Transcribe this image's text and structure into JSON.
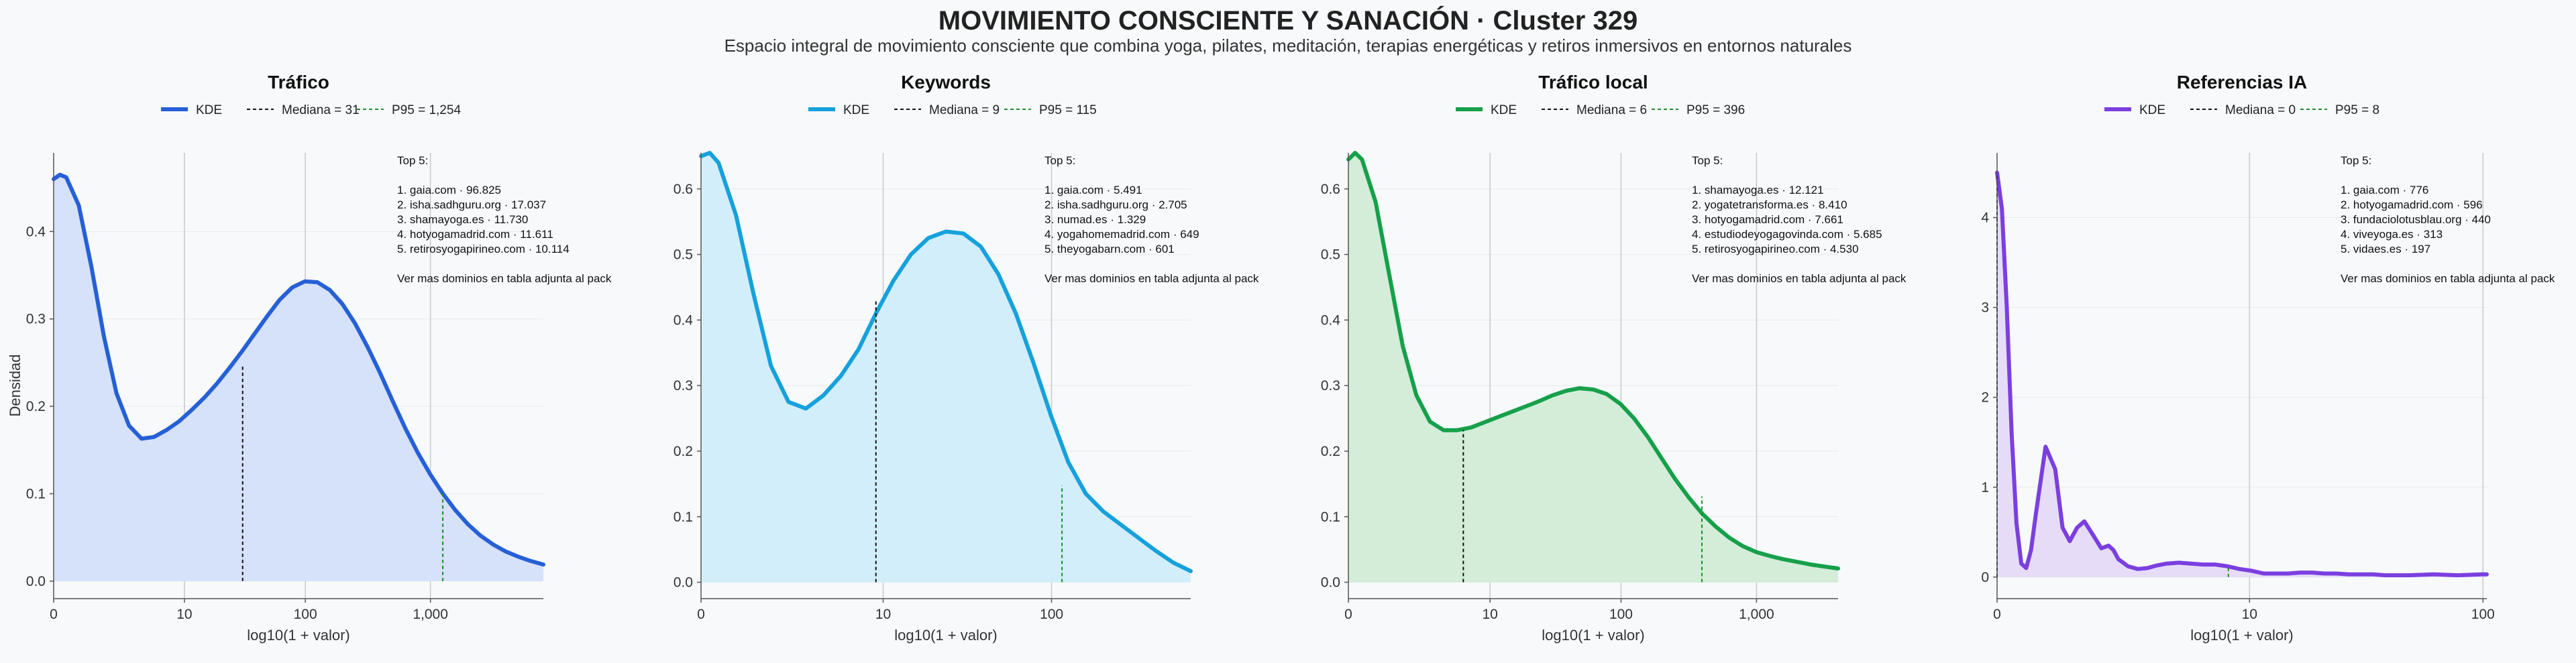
{
  "title": "MOVIMIENTO CONSCIENTE Y SANACIÓN · Cluster 329",
  "subtitle": "Espacio integral de movimiento consciente que combina yoga, pilates, meditación, terapias energéticas y retiros inmersivos en entornos naturales",
  "ylabel": "Densidad",
  "legend_labels": {
    "kde": "KDE"
  },
  "chart_data": [
    {
      "type": "area",
      "title": "Tráfico",
      "color": "#2660d6",
      "fill": "#d6e1fa",
      "xlabel": "log10(1 + valor)",
      "xlim": [
        0,
        3.9
      ],
      "ylim": [
        -0.02,
        0.49
      ],
      "xticks": [
        {
          "v": 0,
          "label": "0"
        },
        {
          "v": 1.0414,
          "label": "10"
        },
        {
          "v": 2.0043,
          "label": "100"
        },
        {
          "v": 3.0004,
          "label": "1,000"
        }
      ],
      "yticks": [
        {
          "v": 0,
          "label": "0.0"
        },
        {
          "v": 0.1,
          "label": "0.1"
        },
        {
          "v": 0.2,
          "label": "0.2"
        },
        {
          "v": 0.3,
          "label": "0.3"
        },
        {
          "v": 0.4,
          "label": "0.4"
        }
      ],
      "x": [
        0,
        0.05,
        0.1,
        0.2,
        0.3,
        0.4,
        0.5,
        0.6,
        0.7,
        0.8,
        0.9,
        1.0,
        1.1,
        1.2,
        1.3,
        1.4,
        1.5,
        1.6,
        1.7,
        1.8,
        1.9,
        2.0,
        2.1,
        2.2,
        2.3,
        2.4,
        2.5,
        2.6,
        2.7,
        2.8,
        2.9,
        3.0,
        3.1,
        3.2,
        3.3,
        3.4,
        3.5,
        3.6,
        3.7,
        3.8,
        3.9
      ],
      "y": [
        0.46,
        0.465,
        0.462,
        0.43,
        0.36,
        0.28,
        0.215,
        0.178,
        0.163,
        0.165,
        0.173,
        0.183,
        0.196,
        0.21,
        0.226,
        0.244,
        0.263,
        0.283,
        0.303,
        0.322,
        0.336,
        0.343,
        0.342,
        0.333,
        0.317,
        0.295,
        0.268,
        0.238,
        0.206,
        0.175,
        0.147,
        0.122,
        0.1,
        0.081,
        0.065,
        0.052,
        0.042,
        0.034,
        0.028,
        0.023,
        0.019
      ],
      "median": {
        "label": "Mediana = 31",
        "x": 1.505,
        "y": 0.246
      },
      "p95": {
        "label": "P95 = 1,254",
        "x": 3.099,
        "y": 0.1
      },
      "annotation": [
        "Top 5:",
        "",
        "1. gaia.com · 96.825",
        "2. isha.sadhguru.org · 17.037",
        "3. shamayoga.es · 11.730",
        "4. hotyogamadrid.com · 11.611",
        "5. retirosyogapirineo.com · 10.114",
        "",
        "Ver mas dominios en tabla adjunta al pack"
      ]
    },
    {
      "type": "area",
      "title": "Keywords",
      "color": "#16a1dc",
      "fill": "#d3eefb",
      "xlabel": "log10(1 + valor)",
      "xlim": [
        0,
        2.8
      ],
      "ylim": [
        -0.025,
        0.655
      ],
      "xticks": [
        {
          "v": 0,
          "label": "0"
        },
        {
          "v": 1.0414,
          "label": "10"
        },
        {
          "v": 2.0043,
          "label": "100"
        }
      ],
      "yticks": [
        {
          "v": 0,
          "label": "0.0"
        },
        {
          "v": 0.1,
          "label": "0.1"
        },
        {
          "v": 0.2,
          "label": "0.2"
        },
        {
          "v": 0.3,
          "label": "0.3"
        },
        {
          "v": 0.4,
          "label": "0.4"
        },
        {
          "v": 0.5,
          "label": "0.5"
        },
        {
          "v": 0.6,
          "label": "0.6"
        }
      ],
      "x": [
        0,
        0.05,
        0.1,
        0.2,
        0.3,
        0.4,
        0.5,
        0.6,
        0.7,
        0.8,
        0.9,
        1.0,
        1.1,
        1.2,
        1.3,
        1.4,
        1.5,
        1.6,
        1.7,
        1.8,
        1.9,
        2.0,
        2.1,
        2.2,
        2.3,
        2.4,
        2.5,
        2.6,
        2.7,
        2.8
      ],
      "y": [
        0.65,
        0.655,
        0.64,
        0.56,
        0.44,
        0.33,
        0.275,
        0.265,
        0.285,
        0.315,
        0.355,
        0.41,
        0.46,
        0.5,
        0.525,
        0.535,
        0.532,
        0.512,
        0.47,
        0.41,
        0.335,
        0.255,
        0.183,
        0.135,
        0.108,
        0.088,
        0.068,
        0.048,
        0.03,
        0.017
      ],
      "median": {
        "label": "Mediana = 9",
        "x": 1.0,
        "y": 0.432
      },
      "p95": {
        "label": "P95 = 115",
        "x": 2.064,
        "y": 0.148
      },
      "annotation": [
        "Top 5:",
        "",
        "1. gaia.com · 5.491",
        "2. isha.sadhguru.org · 2.705",
        "3. numad.es · 1.329",
        "4. yogahomemadrid.com · 649",
        "5. theyogabarn.com · 601",
        "",
        "Ver mas dominios en tabla adjunta al pack"
      ]
    },
    {
      "type": "area",
      "title": "Tráfico local",
      "color": "#16a04a",
      "fill": "#d3edd9",
      "xlabel": "log10(1 + valor)",
      "xlim": [
        0,
        3.6
      ],
      "ylim": [
        -0.025,
        0.655
      ],
      "xticks": [
        {
          "v": 0,
          "label": "0"
        },
        {
          "v": 1.0414,
          "label": "10"
        },
        {
          "v": 2.0043,
          "label": "100"
        },
        {
          "v": 3.0004,
          "label": "1,000"
        }
      ],
      "yticks": [
        {
          "v": 0,
          "label": "0.0"
        },
        {
          "v": 0.1,
          "label": "0.1"
        },
        {
          "v": 0.2,
          "label": "0.2"
        },
        {
          "v": 0.3,
          "label": "0.3"
        },
        {
          "v": 0.4,
          "label": "0.4"
        },
        {
          "v": 0.5,
          "label": "0.5"
        },
        {
          "v": 0.6,
          "label": "0.6"
        }
      ],
      "x": [
        0,
        0.05,
        0.1,
        0.2,
        0.3,
        0.4,
        0.5,
        0.6,
        0.7,
        0.8,
        0.9,
        1.0,
        1.1,
        1.2,
        1.3,
        1.4,
        1.5,
        1.6,
        1.7,
        1.8,
        1.9,
        2.0,
        2.1,
        2.2,
        2.3,
        2.4,
        2.5,
        2.6,
        2.7,
        2.8,
        2.9,
        3.0,
        3.1,
        3.2,
        3.3,
        3.4,
        3.5,
        3.6
      ],
      "y": [
        0.645,
        0.655,
        0.645,
        0.58,
        0.47,
        0.36,
        0.285,
        0.245,
        0.232,
        0.232,
        0.236,
        0.244,
        0.252,
        0.26,
        0.268,
        0.276,
        0.285,
        0.292,
        0.296,
        0.294,
        0.287,
        0.272,
        0.25,
        0.222,
        0.19,
        0.158,
        0.13,
        0.105,
        0.085,
        0.068,
        0.055,
        0.046,
        0.04,
        0.035,
        0.031,
        0.027,
        0.024,
        0.021
      ],
      "median": {
        "label": "Mediana = 6",
        "x": 0.845,
        "y": 0.232
      },
      "p95": {
        "label": "P95 = 396",
        "x": 2.599,
        "y": 0.131
      },
      "annotation": [
        "Top 5:",
        "",
        "1. shamayoga.es · 12.121",
        "2. yogatetransforma.es · 8.410",
        "3. hotyogamadrid.com · 7.661",
        "4. estudiodeyogagovinda.com · 5.685",
        "5. retirosyogapirineo.com · 4.530",
        "",
        "Ver mas dominios en tabla adjunta al pack"
      ]
    },
    {
      "type": "area",
      "title": "Referencias IA",
      "color": "#7b3fe0",
      "fill": "#e6dcf8",
      "xlabel": "log10(1 + valor)",
      "xlim": [
        0,
        2.02
      ],
      "ylim": [
        -0.24,
        4.72
      ],
      "xticks": [
        {
          "v": 0,
          "label": "0"
        },
        {
          "v": 1.0414,
          "label": "10"
        },
        {
          "v": 2.0043,
          "label": "100"
        }
      ],
      "yticks": [
        {
          "v": 0,
          "label": "0"
        },
        {
          "v": 1,
          "label": "1"
        },
        {
          "v": 2,
          "label": "2"
        },
        {
          "v": 3,
          "label": "3"
        },
        {
          "v": 4,
          "label": "4"
        }
      ],
      "x": [
        0,
        0.02,
        0.04,
        0.06,
        0.08,
        0.1,
        0.12,
        0.14,
        0.16,
        0.2,
        0.24,
        0.27,
        0.3,
        0.33,
        0.36,
        0.4,
        0.43,
        0.46,
        0.48,
        0.5,
        0.54,
        0.58,
        0.62,
        0.66,
        0.7,
        0.75,
        0.8,
        0.85,
        0.9,
        0.95,
        1.0,
        1.05,
        1.1,
        1.15,
        1.2,
        1.25,
        1.3,
        1.35,
        1.4,
        1.45,
        1.5,
        1.55,
        1.6,
        1.7,
        1.8,
        1.9,
        2.0,
        2.02
      ],
      "y": [
        4.5,
        4.1,
        3.0,
        1.6,
        0.6,
        0.15,
        0.1,
        0.3,
        0.7,
        1.45,
        1.2,
        0.55,
        0.4,
        0.55,
        0.62,
        0.45,
        0.32,
        0.35,
        0.3,
        0.2,
        0.12,
        0.09,
        0.1,
        0.13,
        0.15,
        0.16,
        0.15,
        0.14,
        0.14,
        0.12,
        0.09,
        0.07,
        0.04,
        0.04,
        0.04,
        0.05,
        0.05,
        0.04,
        0.04,
        0.03,
        0.03,
        0.03,
        0.02,
        0.02,
        0.03,
        0.02,
        0.03,
        0.03
      ],
      "median": {
        "label": "Mediana = 0",
        "x": 0,
        "y": 4.5
      },
      "p95": {
        "label": "P95 = 8",
        "x": 0.954,
        "y": 0.12
      },
      "annotation": [
        "Top 5:",
        "",
        "1. gaia.com · 776",
        "2. hotyogamadrid.com · 596",
        "3. fundaciolotusblau.org · 440",
        "4. viveyoga.es · 313",
        "5. vidaes.es · 197",
        "",
        "Ver mas dominios en tabla adjunta al pack"
      ]
    }
  ]
}
